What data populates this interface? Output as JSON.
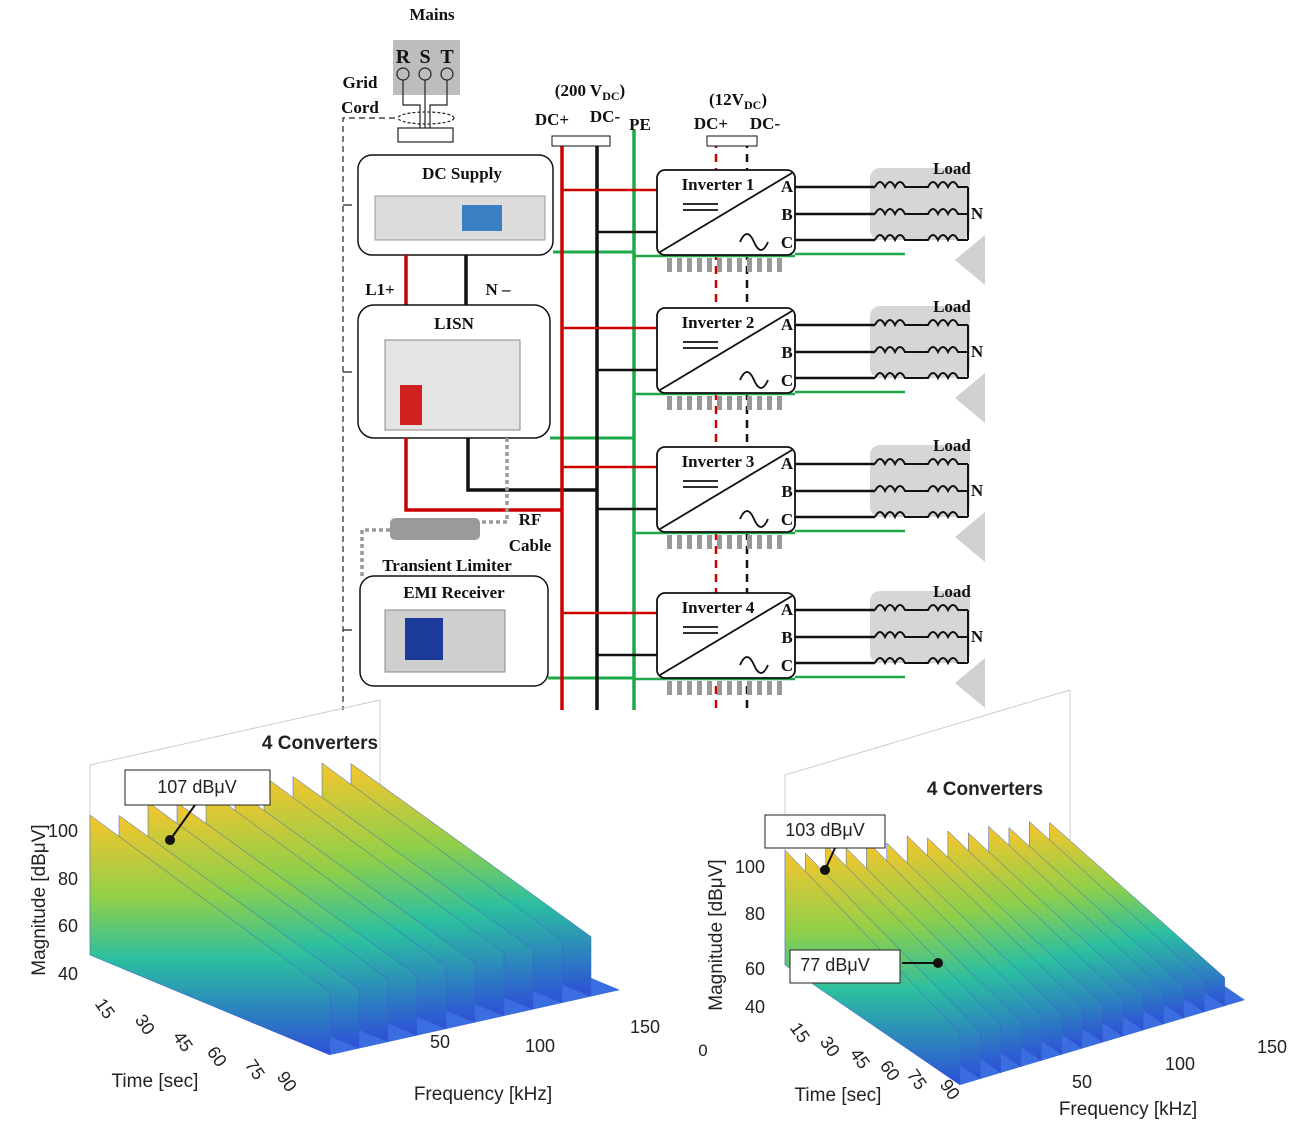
{
  "diagram": {
    "mains": "Mains",
    "phases": [
      "R",
      "S",
      "T"
    ],
    "grid_cord": [
      "Grid",
      "Cord"
    ],
    "dc_supply": "DC Supply",
    "l1": "L1+",
    "n": "N –",
    "lisn": "LISN",
    "rf_cable": [
      "RF",
      "Cable"
    ],
    "transient_limiter": "Transient Limiter",
    "emi_receiver": "EMI Receiver",
    "bus_high": {
      "open": "(200 V",
      "sub": "DC",
      "close": ")",
      "plus": "DC+",
      "minus": "DC-",
      "pe": "PE"
    },
    "bus_low": {
      "open": "(12V",
      "sub": "DC",
      "close": ")",
      "plus": "DC+",
      "minus": "DC-"
    },
    "inverters": [
      {
        "label": "Inverter 1",
        "phases": [
          "A",
          "B",
          "C"
        ],
        "load": "Load",
        "neutral": "N"
      },
      {
        "label": "Inverter 2",
        "phases": [
          "A",
          "B",
          "C"
        ],
        "load": "Load",
        "neutral": "N"
      },
      {
        "label": "Inverter 3",
        "phases": [
          "A",
          "B",
          "C"
        ],
        "load": "Load",
        "neutral": "N"
      },
      {
        "label": "Inverter 4",
        "phases": [
          "A",
          "B",
          "C"
        ],
        "load": "Load",
        "neutral": "N"
      }
    ]
  },
  "plots": [
    {
      "title": "4 Converters",
      "annotations": [
        "107 dBμV"
      ],
      "y_label": "Magnitude [dBμV]",
      "yticks": [
        40,
        60,
        80,
        100
      ],
      "time_label": "Time [sec]",
      "time_ticks": [
        15,
        30,
        45,
        60,
        75,
        90
      ],
      "freq_label": "Frequency [kHz]",
      "freq_ticks": [
        50,
        100,
        150
      ]
    },
    {
      "title": "4 Converters",
      "annotations": [
        "103 dBμV",
        "77 dBμV"
      ],
      "y_label": "Magnitude [dBμV]",
      "yticks": [
        40,
        60,
        80,
        100
      ],
      "time_label": "Time [sec]",
      "time_ticks": [
        15,
        30,
        45,
        60,
        75,
        90
      ],
      "freq_label": "Frequency [kHz]",
      "freq_ticks": [
        50,
        100,
        150
      ],
      "corner_tick": 0
    }
  ]
}
